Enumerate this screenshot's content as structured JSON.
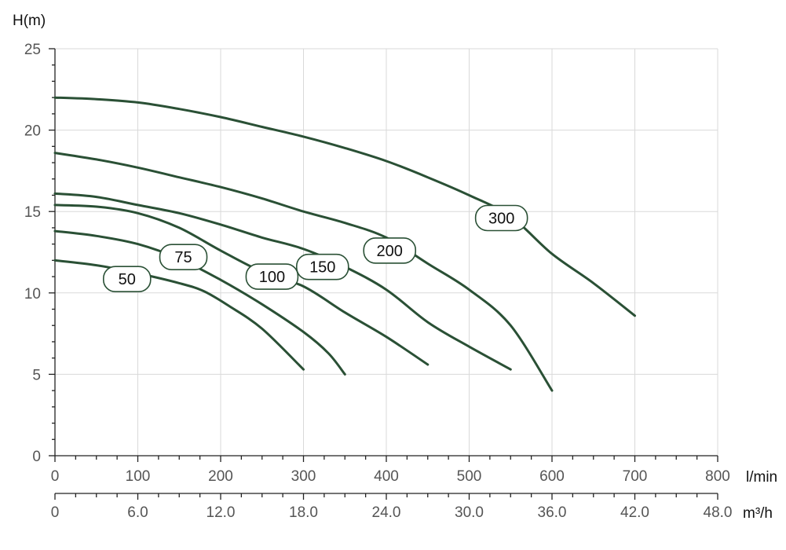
{
  "chart_data": {
    "type": "line",
    "title": "",
    "ylabel": "H(m)",
    "xlabel": "l/min",
    "xlabel2": "m³/h",
    "xlim": [
      0,
      800
    ],
    "ylim": [
      0,
      25
    ],
    "x_ticks": [
      "0",
      "100",
      "200",
      "300",
      "400",
      "500",
      "600",
      "700",
      "800"
    ],
    "x2_ticks": [
      "0",
      "6.0",
      "12.0",
      "18.0",
      "24.0",
      "30.0",
      "36.0",
      "42.0",
      "48.0"
    ],
    "y_ticks": [
      "0",
      "5",
      "10",
      "15",
      "20",
      "25"
    ],
    "grid": true,
    "line_color": "#2a5035",
    "series": [
      {
        "name": "50",
        "points": [
          [
            0,
            12.0
          ],
          [
            50,
            11.7
          ],
          [
            100,
            11.2
          ],
          [
            150,
            10.6
          ],
          [
            180,
            10.1
          ],
          [
            210,
            9.2
          ],
          [
            250,
            7.8
          ],
          [
            300,
            5.3
          ]
        ]
      },
      {
        "name": "75",
        "points": [
          [
            0,
            13.8
          ],
          [
            50,
            13.5
          ],
          [
            100,
            13.0
          ],
          [
            150,
            12.1
          ],
          [
            200,
            10.8
          ],
          [
            250,
            9.3
          ],
          [
            300,
            7.6
          ],
          [
            330,
            6.3
          ],
          [
            350,
            5.0
          ]
        ]
      },
      {
        "name": "100",
        "points": [
          [
            0,
            15.4
          ],
          [
            50,
            15.3
          ],
          [
            100,
            14.9
          ],
          [
            150,
            14.0
          ],
          [
            200,
            12.6
          ],
          [
            250,
            11.3
          ],
          [
            300,
            10.4
          ],
          [
            350,
            8.8
          ],
          [
            400,
            7.3
          ],
          [
            450,
            5.6
          ]
        ]
      },
      {
        "name": "150",
        "points": [
          [
            0,
            16.1
          ],
          [
            50,
            15.9
          ],
          [
            100,
            15.4
          ],
          [
            150,
            14.9
          ],
          [
            200,
            14.2
          ],
          [
            250,
            13.4
          ],
          [
            300,
            12.7
          ],
          [
            350,
            11.6
          ],
          [
            400,
            10.2
          ],
          [
            450,
            8.2
          ],
          [
            500,
            6.7
          ],
          [
            550,
            5.3
          ]
        ]
      },
      {
        "name": "200",
        "points": [
          [
            0,
            18.6
          ],
          [
            50,
            18.2
          ],
          [
            100,
            17.7
          ],
          [
            150,
            17.1
          ],
          [
            200,
            16.5
          ],
          [
            250,
            15.8
          ],
          [
            300,
            15.0
          ],
          [
            350,
            14.3
          ],
          [
            400,
            13.4
          ],
          [
            450,
            11.8
          ],
          [
            500,
            10.2
          ],
          [
            550,
            8.0
          ],
          [
            600,
            4.0
          ]
        ]
      },
      {
        "name": "300",
        "points": [
          [
            0,
            22.0
          ],
          [
            50,
            21.9
          ],
          [
            100,
            21.7
          ],
          [
            150,
            21.3
          ],
          [
            200,
            20.8
          ],
          [
            250,
            20.2
          ],
          [
            300,
            19.6
          ],
          [
            350,
            18.9
          ],
          [
            400,
            18.1
          ],
          [
            450,
            17.1
          ],
          [
            500,
            16.0
          ],
          [
            550,
            14.7
          ],
          [
            600,
            12.4
          ],
          [
            650,
            10.6
          ],
          [
            700,
            8.6
          ]
        ]
      }
    ],
    "labels": [
      {
        "text": "50",
        "x": 87,
        "y": 10.85
      },
      {
        "text": "75",
        "x": 155,
        "y": 12.2
      },
      {
        "text": "100",
        "x": 262,
        "y": 11.0
      },
      {
        "text": "150",
        "x": 323,
        "y": 11.6
      },
      {
        "text": "200",
        "x": 404,
        "y": 12.6
      },
      {
        "text": "300",
        "x": 539,
        "y": 14.6
      }
    ]
  }
}
